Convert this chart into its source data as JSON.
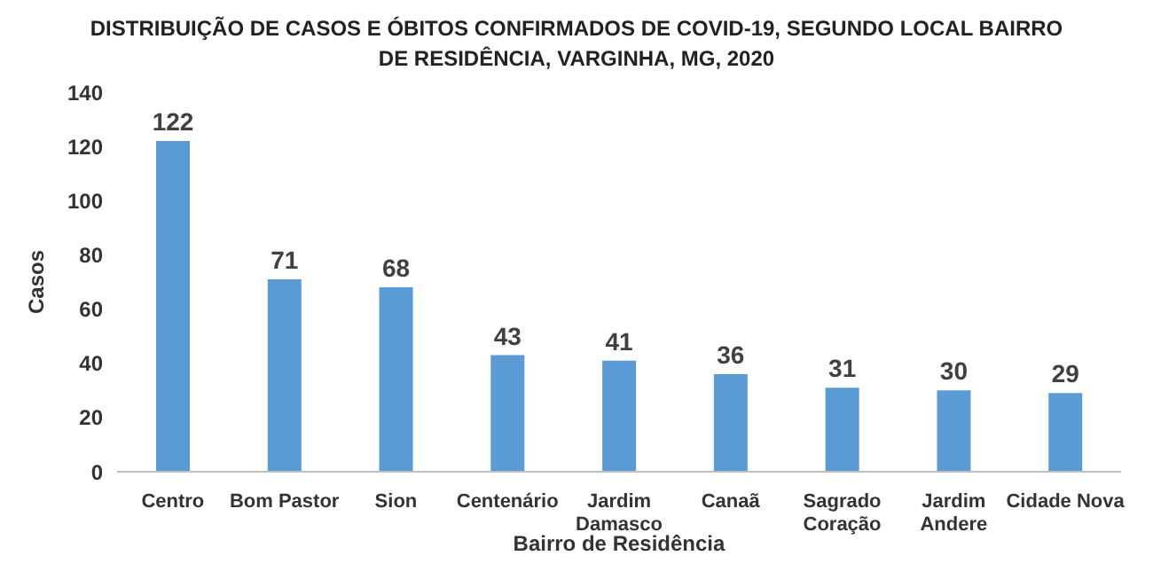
{
  "chart_data": {
    "type": "bar",
    "title": "DISTRIBUIÇÃO DE CASOS E ÓBITOS CONFIRMADOS DE COVID-19, SEGUNDO LOCAL BAIRRO DE RESIDÊNCIA, VARGINHA, MG, 2020",
    "xlabel": "Bairro de Residência",
    "ylabel": "Casos",
    "categories": [
      "Centro",
      "Bom Pastor",
      "Sion",
      "Centenário",
      "Jardim Damasco",
      "Canaã",
      "Sagrado Coração",
      "Jardim Andere",
      "Cidade Nova"
    ],
    "values": [
      122,
      71,
      68,
      43,
      41,
      36,
      31,
      30,
      29
    ],
    "color": "#5b9bd5",
    "ylim": [
      0,
      140
    ],
    "yticks": [
      0,
      20,
      40,
      60,
      80,
      100,
      120,
      140
    ],
    "data_labels": true
  }
}
